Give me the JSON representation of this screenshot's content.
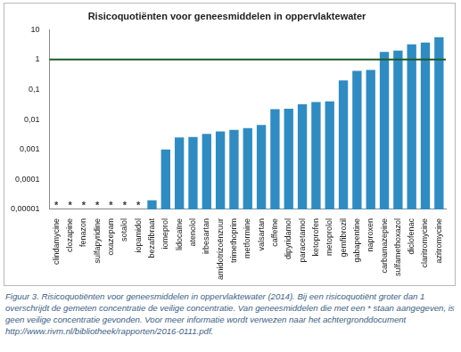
{
  "chart_data": {
    "type": "bar",
    "title": "Risicoquotiënten voor geneesmiddelen in oppervlaktewater",
    "caption": "Figuur 3. Risicoquotiënten voor geneesmiddelen in oppervlaktewater (2014). Bij een risicoquotiënt groter dan 1 overschrijdt de gemeten concentratie de veilige concentratie. Van geneesmiddelen die met een * staan aangegeven, is geen veilige concentratie gevonden. Voor meer informatie wordt verwezen naar het achtergronddocument http://www.rivm.nl/bibliotheek/rapporten/2016-0111.pdf.",
    "categories": [
      "clindamycine",
      "clozapine",
      "fenazon",
      "sulfapyridine",
      "oxazepam",
      "sotalol",
      "iopamidol",
      "bezafibraat",
      "iomeprol",
      "lidocaïne",
      "atenolol",
      "irbesartan",
      "amidotrizoënzuur",
      "trimethoprim",
      "metformine",
      "valsartan",
      "caffeïne",
      "dipyridamol",
      "paracetamol",
      "ketoprofen",
      "metoprolol",
      "gemfibrozil",
      "gabapentine",
      "naproxen",
      "carbamazepine",
      "sulfamethoxazol",
      "diclofenac",
      "claritromycine",
      "azitromycine"
    ],
    "values": [
      null,
      null,
      null,
      null,
      null,
      null,
      null,
      2e-05,
      0.001,
      0.0025,
      0.0026,
      0.0033,
      0.004,
      0.0045,
      0.0052,
      0.0065,
      0.022,
      0.023,
      0.032,
      0.038,
      0.04,
      0.2,
      0.42,
      0.45,
      1.8,
      2.0,
      3.2,
      3.7,
      5.6
    ],
    "annotations": [
      {
        "category": "clindamycine",
        "text": "*"
      },
      {
        "category": "clozapine",
        "text": "*"
      },
      {
        "category": "fenazon",
        "text": "*"
      },
      {
        "category": "sulfapyridine",
        "text": "*"
      },
      {
        "category": "oxazepam",
        "text": "*"
      },
      {
        "category": "sotalol",
        "text": "*"
      },
      {
        "category": "iopamidol",
        "text": "*"
      }
    ],
    "reference_lines": [
      {
        "y": 1,
        "color": "#1e5a2c"
      }
    ],
    "color": "#2f8cc3",
    "log": "y",
    "ylim": [
      1e-05,
      10
    ],
    "yticks": [
      {
        "value": 1e-05,
        "label": "0,00001"
      },
      {
        "value": 0.0001,
        "label": "0,0001"
      },
      {
        "value": 0.001,
        "label": "0,001"
      },
      {
        "value": 0.01,
        "label": "0,01"
      },
      {
        "value": 0.1,
        "label": "0,1"
      },
      1,
      10
    ],
    "grid": false
  }
}
